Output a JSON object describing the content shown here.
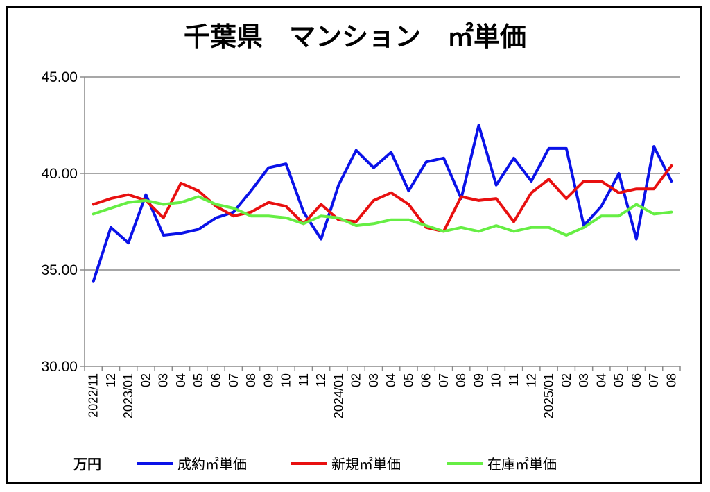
{
  "chart_data": {
    "type": "line",
    "title": "千葉県　マンション　㎡単価",
    "unit_label": "万円",
    "ylim": [
      30,
      45
    ],
    "yticks": [
      "30.00",
      "35.00",
      "40.00",
      "45.00"
    ],
    "grid": "horizontal",
    "legend_position": "bottom",
    "x": [
      "2022/11",
      "12",
      "2023/01",
      "02",
      "03",
      "04",
      "05",
      "06",
      "07",
      "08",
      "09",
      "10",
      "11",
      "12",
      "2024/01",
      "02",
      "03",
      "04",
      "05",
      "06",
      "07",
      "08",
      "09",
      "10",
      "11",
      "12",
      "2025/01",
      "02",
      "03",
      "04",
      "05",
      "06",
      "07",
      "08"
    ],
    "series": [
      {
        "name": "成約㎡単価",
        "color": "#0a12e8",
        "values": [
          34.4,
          37.2,
          36.4,
          38.9,
          36.8,
          36.9,
          37.1,
          37.7,
          38.0,
          39.1,
          40.3,
          40.5,
          38.0,
          36.6,
          39.4,
          41.2,
          40.3,
          41.1,
          39.1,
          40.6,
          40.8,
          38.7,
          42.5,
          39.4,
          40.8,
          39.6,
          41.3,
          41.3,
          37.3,
          38.3,
          40.0,
          36.6,
          41.4,
          39.6
        ]
      },
      {
        "name": "新規㎡単価",
        "color": "#e81010",
        "values": [
          38.4,
          38.7,
          38.9,
          38.6,
          37.7,
          39.5,
          39.1,
          38.3,
          37.8,
          38.0,
          38.5,
          38.3,
          37.4,
          38.4,
          37.6,
          37.5,
          38.6,
          39.0,
          38.4,
          37.2,
          37.0,
          38.8,
          38.6,
          38.7,
          37.5,
          39.0,
          39.7,
          38.7,
          39.6,
          39.6,
          39.0,
          39.2,
          39.2,
          40.4
        ]
      },
      {
        "name": "在庫㎡単価",
        "color": "#66ee44",
        "values": [
          37.9,
          38.2,
          38.5,
          38.6,
          38.4,
          38.5,
          38.8,
          38.4,
          38.2,
          37.8,
          37.8,
          37.7,
          37.4,
          37.8,
          37.7,
          37.3,
          37.4,
          37.6,
          37.6,
          37.3,
          37.0,
          37.2,
          37.0,
          37.3,
          37.0,
          37.2,
          37.2,
          36.8,
          37.2,
          37.8,
          37.8,
          38.4,
          37.9,
          38.0
        ]
      }
    ]
  }
}
